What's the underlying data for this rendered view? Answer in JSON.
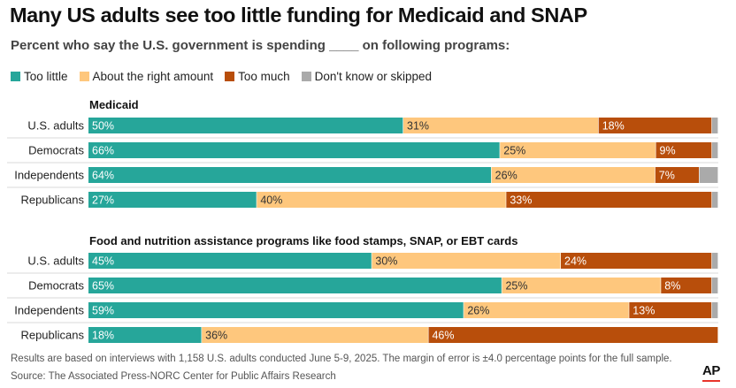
{
  "title": "Many US adults see too little funding for Medicaid and SNAP",
  "subtitle": "Percent who say the U.S. government is spending ____ on following programs:",
  "colors": {
    "too_little": "#26a69a",
    "about_right": "#fec77d",
    "too_much": "#b84e0b",
    "dont_know": "#aaaaaa"
  },
  "chart_data": {
    "type": "bar",
    "orientation": "horizontal",
    "stacked": true,
    "legend_placement": "top-left",
    "series_names": [
      "Too little",
      "About the right amount",
      "Too much",
      "Don't know or skipped"
    ],
    "groups": [
      {
        "label": "Medicaid",
        "rows": [
          {
            "label": "U.S. adults",
            "values": [
              50,
              31,
              18,
              1
            ]
          },
          {
            "label": "Democrats",
            "values": [
              66,
              25,
              9,
              1
            ]
          },
          {
            "label": "Independents",
            "values": [
              64,
              26,
              7,
              3
            ]
          },
          {
            "label": "Republicans",
            "values": [
              27,
              40,
              33,
              1
            ]
          }
        ]
      },
      {
        "label": "Food and nutrition assistance programs like food stamps, SNAP, or EBT cards",
        "rows": [
          {
            "label": "U.S. adults",
            "values": [
              45,
              30,
              24,
              1
            ]
          },
          {
            "label": "Democrats",
            "values": [
              65,
              25,
              8,
              1
            ]
          },
          {
            "label": "Independents",
            "values": [
              59,
              26,
              13,
              1
            ]
          },
          {
            "label": "Republicans",
            "values": [
              18,
              36,
              46,
              0
            ]
          }
        ]
      }
    ]
  },
  "footer": {
    "note": "Results are based on interviews with 1,158 U.S. adults conducted June 5-9, 2025. The margin of error is ±4.0 percentage points for the full sample.",
    "source": "Source: The Associated Press-NORC Center for Public Affairs Research"
  },
  "logo": "AP"
}
